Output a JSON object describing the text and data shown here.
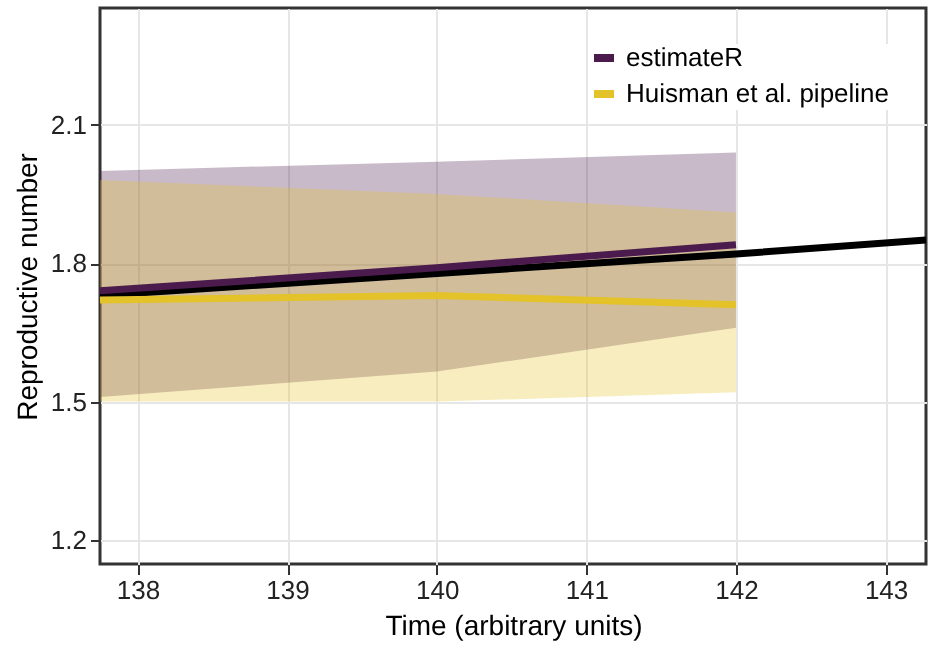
{
  "chart_data": {
    "type": "line",
    "xlabel": "Time (arbitrary units)",
    "ylabel": "Reproductive number",
    "xlim": [
      137.75,
      143.27
    ],
    "xticks": [
      138,
      139,
      140,
      141,
      142,
      143
    ],
    "ylim": [
      1.148,
      2.353
    ],
    "yticks": [
      1.2,
      1.5,
      1.8,
      2.1
    ],
    "grid": true,
    "legend": "top right",
    "line_style": "solid",
    "series": [
      {
        "name": "estimateR",
        "color": "#4b1b4e",
        "x": [
          137.75,
          140,
          142
        ],
        "values": [
          1.74,
          1.79,
          1.84
        ],
        "lower": [
          1.51,
          1.565,
          1.66
        ],
        "upper": [
          2.0,
          2.02,
          2.04
        ]
      },
      {
        "name": "Huisman et al. pipeline",
        "color": "#e3c22a",
        "x": [
          137.75,
          140,
          142
        ],
        "values": [
          1.72,
          1.73,
          1.71
        ],
        "lower": [
          1.5,
          1.5,
          1.52
        ],
        "upper": [
          1.98,
          1.95,
          1.91
        ]
      },
      {
        "color": "#000000",
        "x": [
          137.75,
          142,
          143.27
        ],
        "values": [
          1.73,
          1.82,
          1.85
        ]
      }
    ]
  }
}
